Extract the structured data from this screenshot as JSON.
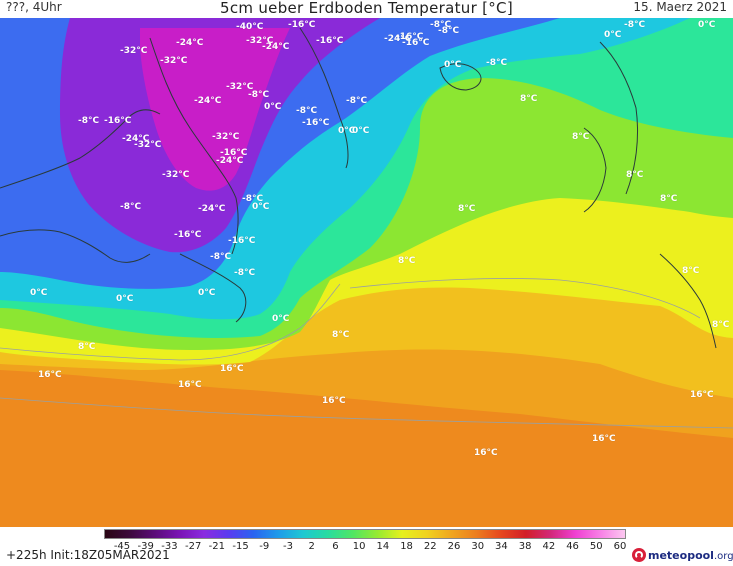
{
  "header": {
    "left": "???, 4Uhr",
    "title": "5cm ueber Erdboden Temperatur [°C]",
    "date": "15. Maerz 2021"
  },
  "legend": {
    "ticks": [
      "-45",
      "-39",
      "-33",
      "-27",
      "-21",
      "-15",
      "-9",
      "-3",
      "2",
      "6",
      "10",
      "14",
      "18",
      "22",
      "26",
      "30",
      "34",
      "38",
      "42",
      "46",
      "50",
      "60"
    ],
    "colors": [
      "#2a0614",
      "#3c0a3c",
      "#5a0d78",
      "#7a14b4",
      "#8a2ce0",
      "#5a3cf0",
      "#2a64f0",
      "#1e9bea",
      "#1ec8d2",
      "#28dca0",
      "#50e664",
      "#96ea32",
      "#e6f01e",
      "#f0d21e",
      "#f0a51e",
      "#ec7d1e",
      "#e6461e",
      "#d21e28",
      "#d2287a",
      "#f040d2",
      "#f880e6",
      "#fcc8f0"
    ]
  },
  "labels": [
    {
      "text": "-40°C"
    },
    {
      "text": "-16°C"
    },
    {
      "text": "-32°C"
    },
    {
      "text": "-24°C"
    },
    {
      "text": "-16°C"
    },
    {
      "text": "-32°C"
    },
    {
      "text": "-32°C"
    },
    {
      "text": "-24°C"
    },
    {
      "text": "-16°C"
    },
    {
      "text": "-8°C"
    },
    {
      "text": "-32°C"
    },
    {
      "text": "-8°C"
    },
    {
      "text": "-24°C"
    },
    {
      "text": "0°C"
    },
    {
      "text": "-8°C"
    },
    {
      "text": "-8°C"
    },
    {
      "text": "-8°C"
    },
    {
      "text": "-16°C"
    },
    {
      "text": "-16°C"
    },
    {
      "text": "0°C"
    },
    {
      "text": "-24°C"
    },
    {
      "text": "-32°C"
    },
    {
      "text": "-32°C"
    },
    {
      "text": "-16°C"
    },
    {
      "text": "-24°C"
    },
    {
      "text": "-32°C"
    },
    {
      "text": "-8°C"
    },
    {
      "text": "0°C"
    },
    {
      "text": "-8°C"
    },
    {
      "text": "-24°C"
    },
    {
      "text": "-16°C"
    },
    {
      "text": "-16°C"
    },
    {
      "text": "-8°C"
    },
    {
      "text": "-8°C"
    },
    {
      "text": "0°C"
    },
    {
      "text": "0°C"
    },
    {
      "text": "0°C"
    },
    {
      "text": "0°C"
    },
    {
      "text": "-24°C"
    },
    {
      "text": "-16°C"
    },
    {
      "text": "-8°C"
    },
    {
      "text": "0°C"
    },
    {
      "text": "0°C"
    },
    {
      "text": "-8°C"
    },
    {
      "text": "-8°C"
    },
    {
      "text": "0°C"
    },
    {
      "text": "0°C"
    },
    {
      "text": "8°C"
    },
    {
      "text": "8°C"
    },
    {
      "text": "8°C"
    },
    {
      "text": "8°C"
    },
    {
      "text": "8°C"
    },
    {
      "text": "8°C"
    },
    {
      "text": "8°C"
    },
    {
      "text": "8°C"
    },
    {
      "text": "8°C"
    },
    {
      "text": "8°C"
    },
    {
      "text": "16°C"
    },
    {
      "text": "16°C"
    },
    {
      "text": "16°C"
    },
    {
      "text": "16°C"
    },
    {
      "text": "16°C"
    },
    {
      "text": "16°C"
    },
    {
      "text": "16°C"
    }
  ],
  "footer": {
    "run": "+225h  Init:18Z05MAR2021",
    "brand": "meteopool",
    "brand_tld": ".org"
  },
  "colors": {
    "deep_cold": "#8a2ad8",
    "very_cold": "#c81ec8",
    "cold": "#3c6cf0",
    "cool": "#1ec8e0",
    "mild": "#2ce69a",
    "warm": "#8ce632",
    "warmer": "#ecf01e",
    "hot": "#f0a21e",
    "hotter": "#ee8a1e",
    "coast": "#2a3a3a",
    "contour": "#9aa0a0"
  }
}
